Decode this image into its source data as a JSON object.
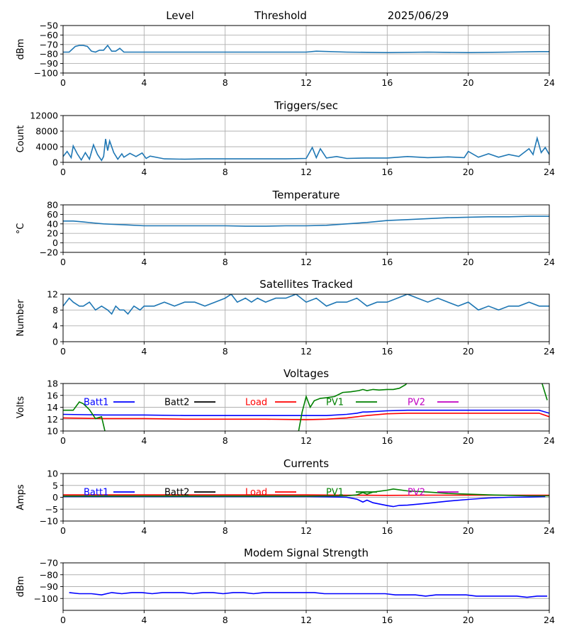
{
  "header": {
    "level_label": "Level",
    "threshold_label": "Threshold",
    "date_label": "2025/06/29"
  },
  "chart_data": [
    {
      "id": "level",
      "type": "line",
      "title": "",
      "ylabel": "dBm",
      "xlim": [
        0,
        24
      ],
      "ylim": [
        -100,
        -50
      ],
      "xticks": [
        0,
        4,
        8,
        12,
        16,
        20,
        24
      ],
      "yticks": [
        -100,
        -90,
        -80,
        -70,
        -60,
        -50
      ],
      "grid": true,
      "series": [
        {
          "color": "#1f77b4",
          "x": [
            0,
            0.3,
            0.6,
            0.8,
            1.0,
            1.2,
            1.4,
            1.6,
            1.8,
            2.0,
            2.2,
            2.4,
            2.6,
            2.8,
            3.0,
            3.5,
            4.0,
            6,
            8,
            10,
            12,
            12.5,
            14,
            16,
            18,
            20,
            22,
            23.5,
            24
          ],
          "y": [
            -78,
            -78,
            -72,
            -71,
            -71,
            -72,
            -77,
            -78,
            -76,
            -76,
            -71,
            -77,
            -77,
            -74,
            -78,
            -78,
            -78,
            -78,
            -78,
            -78,
            -78,
            -77,
            -78,
            -78.5,
            -78,
            -78.5,
            -78,
            -77.5,
            -77.5
          ]
        }
      ]
    },
    {
      "id": "triggers",
      "type": "line",
      "title": "Triggers/sec",
      "ylabel": "Count",
      "xlim": [
        0,
        24
      ],
      "ylim": [
        0,
        12000
      ],
      "xticks": [
        0,
        4,
        8,
        12,
        16,
        20,
        24
      ],
      "yticks": [
        0,
        4000,
        8000,
        12000
      ],
      "grid": true,
      "series": [
        {
          "color": "#1f77b4",
          "x": [
            0,
            0.2,
            0.4,
            0.5,
            0.7,
            0.9,
            1.1,
            1.3,
            1.5,
            1.7,
            1.9,
            2.0,
            2.1,
            2.2,
            2.3,
            2.5,
            2.7,
            2.9,
            3.0,
            3.3,
            3.6,
            3.9,
            4.1,
            4.3,
            5,
            6,
            7,
            8,
            9,
            10,
            11,
            12,
            12.3,
            12.5,
            12.7,
            13,
            13.5,
            14,
            15,
            16,
            17,
            18,
            19,
            19.8,
            20,
            20.5,
            21,
            21.5,
            22,
            22.5,
            23,
            23.2,
            23.4,
            23.6,
            23.8,
            24
          ],
          "y": [
            1500,
            2800,
            1200,
            4200,
            2200,
            600,
            2500,
            800,
            4500,
            2000,
            500,
            1500,
            6000,
            3000,
            5500,
            2500,
            800,
            2200,
            1300,
            2300,
            1500,
            2400,
            1000,
            1600,
            900,
            800,
            900,
            900,
            900,
            900,
            900,
            1000,
            3800,
            1200,
            3500,
            1100,
            1500,
            1000,
            1100,
            1100,
            1500,
            1200,
            1400,
            1200,
            2800,
            1300,
            2200,
            1300,
            2000,
            1500,
            3500,
            2000,
            6200,
            2500,
            3800,
            2000
          ]
        }
      ]
    },
    {
      "id": "temperature",
      "type": "line",
      "title": "Temperature",
      "ylabel": "°C",
      "xlim": [
        0,
        24
      ],
      "ylim": [
        -20,
        80
      ],
      "xticks": [
        0,
        4,
        8,
        12,
        16,
        20,
        24
      ],
      "yticks": [
        -20,
        0,
        20,
        40,
        60,
        80
      ],
      "grid": true,
      "series": [
        {
          "color": "#1f77b4",
          "x": [
            0,
            0.5,
            1,
            1.5,
            2,
            2.5,
            3,
            4,
            5,
            6,
            7,
            8,
            9,
            10,
            11,
            12,
            13,
            14,
            15,
            16,
            17,
            18,
            19,
            20,
            21,
            22,
            23,
            24
          ],
          "y": [
            46,
            46,
            44,
            42,
            40,
            39,
            38,
            36,
            36,
            36,
            36,
            36,
            35,
            35,
            36,
            36,
            37,
            40,
            43,
            47,
            49,
            51,
            53,
            54,
            55,
            55,
            56,
            56
          ]
        }
      ]
    },
    {
      "id": "satellites",
      "type": "line",
      "title": "Satellites Tracked",
      "ylabel": "Number",
      "xlim": [
        0,
        24
      ],
      "ylim": [
        0,
        12
      ],
      "xticks": [
        0,
        4,
        8,
        12,
        16,
        20,
        24
      ],
      "yticks": [
        0,
        4,
        8,
        12
      ],
      "grid": true,
      "series": [
        {
          "color": "#1f77b4",
          "x": [
            0,
            0.3,
            0.5,
            0.8,
            1.0,
            1.3,
            1.6,
            1.9,
            2.2,
            2.4,
            2.6,
            2.8,
            3.0,
            3.2,
            3.5,
            3.8,
            4.0,
            4.5,
            5.0,
            5.5,
            6.0,
            6.5,
            7.0,
            7.5,
            8.0,
            8.3,
            8.6,
            9.0,
            9.3,
            9.6,
            10.0,
            10.5,
            11.0,
            11.5,
            12.0,
            12.5,
            13.0,
            13.5,
            14.0,
            14.5,
            15.0,
            15.5,
            16.0,
            16.5,
            17.0,
            17.5,
            18.0,
            18.5,
            19.0,
            19.5,
            20.0,
            20.5,
            21.0,
            21.5,
            22.0,
            22.5,
            23.0,
            23.5,
            24.0
          ],
          "y": [
            9,
            11,
            10,
            9,
            9,
            10,
            8,
            9,
            8,
            7,
            9,
            8,
            8,
            7,
            9,
            8,
            9,
            9,
            10,
            9,
            10,
            10,
            9,
            10,
            11,
            12,
            10,
            11,
            10,
            11,
            10,
            11,
            11,
            12,
            10,
            11,
            9,
            10,
            10,
            11,
            9,
            10,
            10,
            11,
            12,
            11,
            10,
            11,
            10,
            9,
            10,
            8,
            9,
            8,
            9,
            9,
            10,
            9,
            9
          ]
        }
      ]
    },
    {
      "id": "voltages",
      "type": "line",
      "title": "Voltages",
      "ylabel": "Volts",
      "xlim": [
        0,
        24
      ],
      "ylim": [
        10,
        18
      ],
      "xticks": [
        0,
        4,
        8,
        12,
        16,
        20,
        24
      ],
      "yticks": [
        10,
        12,
        14,
        16,
        18
      ],
      "grid": true,
      "legend": [
        "Batt1",
        "Batt2",
        "Load",
        "PV1",
        "PV2"
      ],
      "series": [
        {
          "name": "Batt1",
          "color": "#0000ff",
          "x": [
            0,
            2,
            4,
            6,
            8,
            10,
            12,
            13,
            14,
            14.5,
            14.8,
            15,
            16,
            17,
            18,
            20,
            22,
            23.5,
            24
          ],
          "y": [
            12.8,
            12.7,
            12.7,
            12.6,
            12.6,
            12.6,
            12.6,
            12.6,
            12.8,
            13.0,
            13.2,
            13.2,
            13.4,
            13.5,
            13.5,
            13.5,
            13.5,
            13.5,
            13.0
          ]
        },
        {
          "name": "Load",
          "color": "#ff0000",
          "x": [
            0,
            2,
            4,
            6,
            8,
            10,
            12,
            13,
            14,
            14.5,
            15,
            16,
            17,
            18,
            20,
            22,
            23.5,
            24
          ],
          "y": [
            12.2,
            12.1,
            12.1,
            12.0,
            12.0,
            12.0,
            11.9,
            12.0,
            12.2,
            12.4,
            12.6,
            12.9,
            13.0,
            13.0,
            13.0,
            13.0,
            13.0,
            12.4
          ]
        },
        {
          "name": "PV1",
          "color": "#008000",
          "x": [
            0,
            0.5,
            0.8,
            1.0,
            1.3,
            1.6,
            1.9,
            2.1,
            2.3
          ],
          "y": [
            13.5,
            13.5,
            14.9,
            14.6,
            13.6,
            12.1,
            12.4,
            9.5,
            9.5
          ]
        },
        {
          "name": "PV1",
          "color": "#008000",
          "x": [
            11.6,
            11.8,
            12.0,
            12.2,
            12.4,
            12.7,
            13.0,
            13.4,
            13.8,
            14.2,
            14.6,
            14.8,
            15.0,
            15.3,
            15.6,
            16.0,
            16.3,
            16.6,
            16.9,
            17.1,
            17.3
          ],
          "y": [
            9.5,
            13.2,
            15.8,
            14.0,
            15.1,
            15.5,
            15.6,
            15.8,
            16.5,
            16.6,
            16.8,
            17.0,
            16.8,
            17.0,
            16.9,
            17.0,
            17.0,
            17.2,
            17.8,
            18.5,
            18.5
          ]
        },
        {
          "name": "PV1",
          "color": "#008000",
          "x": [
            23.2,
            23.6,
            23.9
          ],
          "y": [
            18.5,
            18.5,
            15.2
          ]
        }
      ]
    },
    {
      "id": "currents",
      "type": "line",
      "title": "Currents",
      "ylabel": "Amps",
      "xlim": [
        0,
        24
      ],
      "ylim": [
        -10,
        10
      ],
      "xticks": [
        0,
        4,
        8,
        12,
        16,
        20,
        24
      ],
      "yticks": [
        -10,
        -5,
        0,
        5,
        10
      ],
      "grid": true,
      "legend": [
        "Batt1",
        "Batt2",
        "Load",
        "PV1",
        "PV2"
      ],
      "series": [
        {
          "name": "Batt1",
          "color": "#0000ff",
          "x": [
            0,
            2,
            4,
            6,
            8,
            10,
            12,
            13,
            14,
            14.5,
            14.8,
            15.0,
            15.3,
            16.0,
            16.3,
            16.6,
            17,
            18,
            19,
            20,
            21,
            22,
            23,
            23.8
          ],
          "y": [
            0.3,
            0.3,
            0.3,
            0.3,
            0.3,
            0.3,
            0.3,
            0.2,
            0.0,
            -0.8,
            -2.0,
            -1.2,
            -2.3,
            -3.5,
            -3.9,
            -3.4,
            -3.3,
            -2.5,
            -1.6,
            -0.9,
            -0.3,
            0.0,
            0.1,
            0.3
          ]
        },
        {
          "name": "Load",
          "color": "#ff0000",
          "x": [
            0,
            2,
            4,
            6,
            8,
            10,
            12,
            14,
            16,
            18,
            20,
            22,
            24
          ],
          "y": [
            1.0,
            1.0,
            1.0,
            1.0,
            1.0,
            1.0,
            1.0,
            0.9,
            0.8,
            0.9,
            0.9,
            0.9,
            0.9
          ]
        },
        {
          "name": "PV1",
          "color": "#008000",
          "x": [
            0,
            2,
            4,
            6,
            8,
            10,
            12,
            14,
            14.5,
            14.8,
            15.0,
            15.3,
            15.6,
            16.0,
            16.3,
            17,
            18,
            19,
            20,
            21,
            22,
            23,
            24
          ],
          "y": [
            0.5,
            0.5,
            0.5,
            0.5,
            0.5,
            0.5,
            0.5,
            0.6,
            1.0,
            2.0,
            1.3,
            2.2,
            2.5,
            3.0,
            3.5,
            2.7,
            2.2,
            1.6,
            1.3,
            1.0,
            0.8,
            0.6,
            0.6
          ]
        }
      ]
    },
    {
      "id": "modem",
      "type": "line",
      "title": "Modem Signal Strength",
      "ylabel": "dBm",
      "xlim": [
        0,
        24
      ],
      "ylim": [
        -110,
        -70
      ],
      "xticks": [
        0,
        4,
        8,
        12,
        16,
        20,
        24
      ],
      "yticks": [
        -100,
        -90,
        -80,
        -70
      ],
      "grid": true,
      "series": [
        {
          "color": "#0000ff",
          "x": [
            0.3,
            0.8,
            1.4,
            1.9,
            2.4,
            2.9,
            3.4,
            3.9,
            4.4,
            4.9,
            5.4,
            5.9,
            6.4,
            6.9,
            7.4,
            7.9,
            8.4,
            8.9,
            9.4,
            9.9,
            10.4,
            10.9,
            11.4,
            11.9,
            12.4,
            12.9,
            13.4,
            13.9,
            14.4,
            14.9,
            15.4,
            15.9,
            16.4,
            16.9,
            17.4,
            17.9,
            18.4,
            18.9,
            19.4,
            19.9,
            20.4,
            20.9,
            21.4,
            21.9,
            22.4,
            22.9,
            23.4,
            23.9
          ],
          "y": [
            -95,
            -96,
            -96,
            -97,
            -95,
            -96,
            -95,
            -95,
            -96,
            -95,
            -95,
            -95,
            -96,
            -95,
            -95,
            -96,
            -95,
            -95,
            -96,
            -95,
            -95,
            -95,
            -95,
            -95,
            -95,
            -96,
            -96,
            -96,
            -96,
            -96,
            -96,
            -96,
            -97,
            -97,
            -97,
            -98,
            -97,
            -97,
            -97,
            -97,
            -98,
            -98,
            -98,
            -98,
            -98,
            -99,
            -98,
            -98
          ]
        }
      ]
    }
  ]
}
